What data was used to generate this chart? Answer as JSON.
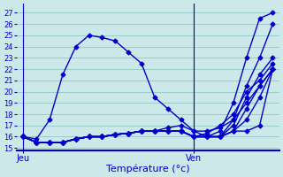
{
  "background_color": "#cce8e8",
  "grid_color": "#99cccc",
  "line_color": "#0000cc",
  "marker": "D",
  "markersize": 2.5,
  "linewidth": 1.0,
  "xlabel": "Température (°c)",
  "xlabel_fontsize": 8,
  "yticks": [
    15,
    16,
    17,
    18,
    19,
    20,
    21,
    22,
    23,
    24,
    25,
    26,
    27
  ],
  "ylim": [
    14.8,
    27.8
  ],
  "xtick_labels": [
    "Jeu",
    "Ven"
  ],
  "jeu_x": 0,
  "ven_x": 13,
  "total_points": 20,
  "xlim_left": -0.5,
  "xlim_right": 19.5,
  "series": [
    [
      16.0,
      15.8,
      17.5,
      21.5,
      24.0,
      25.0,
      24.8,
      24.5,
      23.5,
      22.5,
      19.5,
      18.5,
      17.5,
      16.5,
      16.0,
      16.5,
      19.0,
      23.0,
      26.5,
      27.0
    ],
    [
      16.0,
      15.5,
      15.5,
      15.5,
      15.8,
      16.0,
      16.0,
      16.2,
      16.3,
      16.5,
      16.5,
      16.5,
      16.5,
      16.0,
      16.0,
      16.0,
      17.5,
      20.5,
      23.0,
      26.0
    ],
    [
      16.0,
      15.5,
      15.5,
      15.5,
      15.8,
      16.0,
      16.0,
      16.2,
      16.3,
      16.5,
      16.5,
      16.5,
      16.5,
      16.0,
      16.0,
      16.0,
      17.0,
      19.5,
      21.5,
      23.0
    ],
    [
      16.0,
      15.5,
      15.5,
      15.5,
      15.8,
      16.0,
      16.0,
      16.2,
      16.3,
      16.5,
      16.5,
      16.5,
      16.5,
      16.0,
      16.0,
      16.0,
      16.5,
      18.5,
      20.5,
      22.0
    ],
    [
      16.0,
      15.5,
      15.5,
      15.5,
      15.8,
      16.0,
      16.0,
      16.2,
      16.3,
      16.5,
      16.5,
      16.5,
      16.5,
      16.0,
      16.0,
      16.0,
      16.5,
      17.5,
      19.5,
      22.0
    ],
    [
      16.0,
      15.5,
      15.5,
      15.5,
      15.8,
      16.0,
      16.0,
      16.2,
      16.3,
      16.5,
      16.5,
      16.8,
      17.0,
      16.5,
      16.5,
      16.8,
      17.5,
      19.0,
      20.5,
      22.0
    ],
    [
      16.0,
      15.5,
      15.5,
      15.5,
      15.8,
      16.0,
      16.0,
      16.2,
      16.3,
      16.5,
      16.5,
      16.5,
      16.5,
      16.0,
      16.3,
      17.0,
      18.0,
      20.0,
      21.0,
      22.5
    ],
    [
      16.0,
      15.5,
      15.5,
      15.5,
      15.8,
      16.0,
      16.0,
      16.2,
      16.3,
      16.5,
      16.5,
      16.5,
      16.5,
      16.0,
      16.0,
      16.0,
      16.5,
      16.5,
      17.0,
      22.0
    ]
  ]
}
